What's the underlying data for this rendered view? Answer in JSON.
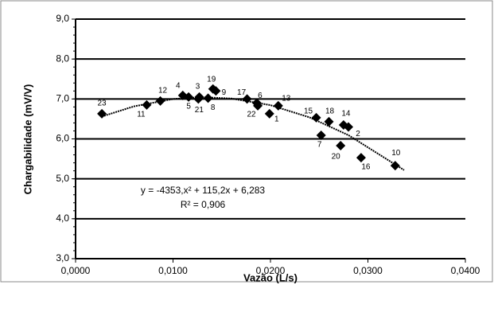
{
  "chart_data": {
    "type": "scatter",
    "x_label": "Vazão (L/s)",
    "y_label": "Chargabilidade (mV/V)",
    "annotations": [
      "y = -4353,x² + 115,2x + 6,283",
      "R² = 0,906"
    ],
    "series": [
      {
        "color": "#000000",
        "labels": [
          "23",
          "11",
          "12",
          "4",
          "5",
          "3",
          "21",
          "8",
          "19",
          "9",
          "17",
          "6",
          "22",
          "1",
          "13",
          "15",
          "18",
          "14",
          "7",
          "2",
          "20",
          "16",
          "10"
        ],
        "x": [
          0.0027,
          0.0073,
          0.0087,
          0.011,
          0.0116,
          0.0127,
          0.0126,
          0.0136,
          0.0141,
          0.0144,
          0.0176,
          0.0186,
          0.0187,
          0.0199,
          0.0208,
          0.0247,
          0.026,
          0.0275,
          0.0252,
          0.028,
          0.0272,
          0.0293,
          0.0328
        ],
        "values": [
          6.63,
          6.85,
          6.95,
          7.09,
          7.05,
          7.05,
          7.0,
          7.02,
          7.25,
          7.2,
          7.0,
          6.9,
          6.83,
          6.63,
          6.83,
          6.53,
          6.43,
          6.35,
          6.09,
          6.3,
          5.83,
          5.53,
          5.33
        ]
      }
    ],
    "xlim": [
      0,
      0.04
    ],
    "xticks": [
      {
        "value": 0,
        "label": "0,0000"
      },
      {
        "value": 0.01,
        "label": "0,0100"
      },
      {
        "value": 0.02,
        "label": "0,0200"
      },
      {
        "value": 0.03,
        "label": "0,0300"
      },
      {
        "value": 0.04,
        "label": "0,0400"
      }
    ],
    "ylim": [
      3,
      9
    ],
    "yticks": [
      {
        "value": 3,
        "label": "3,0"
      },
      {
        "value": 4,
        "label": "4,0"
      },
      {
        "value": 5,
        "label": "5,0"
      },
      {
        "value": 6,
        "label": "6,0"
      },
      {
        "value": 7,
        "label": "7,0"
      },
      {
        "value": 8,
        "label": "8,0"
      },
      {
        "value": 9,
        "label": "9,0"
      }
    ],
    "grid": true
  }
}
